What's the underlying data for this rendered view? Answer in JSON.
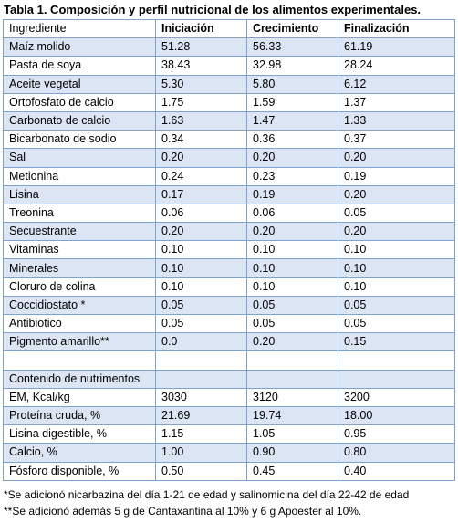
{
  "title": "Tabla 1. Composición y perfil nutricional de los alimentos experimentales.",
  "headers": [
    "Ingrediente",
    "Iniciación",
    "Crecimiento",
    "Finalización"
  ],
  "ingredients": [
    [
      "Maíz molido",
      "51.28",
      "56.33",
      "61.19"
    ],
    [
      "Pasta de soya",
      "38.43",
      "32.98",
      "28.24"
    ],
    [
      "Aceite vegetal",
      "5.30",
      "5.80",
      "6.12"
    ],
    [
      "Ortofosfato de calcio",
      "1.75",
      "1.59",
      "1.37"
    ],
    [
      "Carbonato de calcio",
      "1.63",
      "1.47",
      "1.33"
    ],
    [
      "Bicarbonato de sodio",
      "0.34",
      "0.36",
      "0.37"
    ],
    [
      "Sal",
      "0.20",
      "0.20",
      "0.20"
    ],
    [
      "Metionina",
      "0.24",
      "0.23",
      "0.19"
    ],
    [
      "Lisina",
      "0.17",
      "0.19",
      "0.20"
    ],
    [
      "Treonina",
      "0.06",
      "0.06",
      "0.05"
    ],
    [
      "Secuestrante",
      "0.20",
      "0.20",
      "0.20"
    ],
    [
      "Vitaminas",
      "0.10",
      "0.10",
      "0.10"
    ],
    [
      "Minerales",
      "0.10",
      "0.10",
      "0.10"
    ],
    [
      "Cloruro de colina",
      "0.10",
      "0.10",
      "0.10"
    ],
    [
      "Coccidiostato *",
      "0.05",
      "0.05",
      "0.05"
    ],
    [
      "Antibiotico",
      "0.05",
      "0.05",
      "0.05"
    ],
    [
      "Pigmento amarillo**",
      "0.0",
      "0.20",
      "0.15"
    ]
  ],
  "nutrients_label": "Contenido de nutrimentos",
  "nutrients": [
    [
      "EM, Kcal/kg",
      "3030",
      "3120",
      "3200"
    ],
    [
      "Proteína cruda, %",
      "21.69",
      "19.74",
      "18.00"
    ],
    [
      "Lisina digestible, %",
      "1.15",
      "1.05",
      "0.95"
    ],
    [
      "Calcio, %",
      "1.00",
      "0.90",
      "0.80"
    ],
    [
      "Fósforo disponible, %",
      "0.50",
      "0.45",
      "0.40"
    ]
  ],
  "footnotes": [
    "*Se adicionó nicarbazina del día 1-21 de edad y salinomicina del día 22-42 de edad",
    "**Se adicionó además 5 g de Cantaxantina al 10% y 6 g Apoester al 10%."
  ],
  "colors": {
    "border": "#7fa3d1",
    "band": "#dbe5f4"
  }
}
